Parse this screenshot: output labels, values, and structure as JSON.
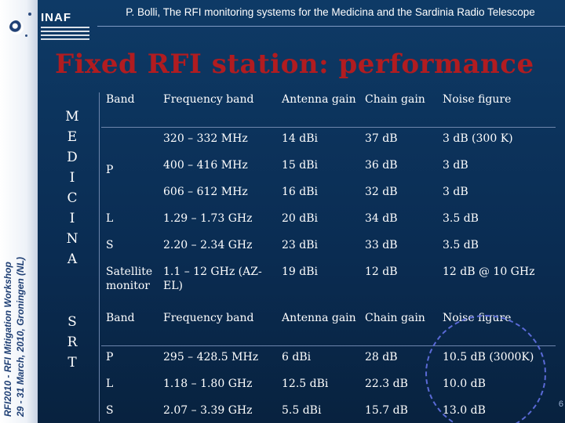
{
  "header": {
    "logo_text": "INAF",
    "title": "P. Bolli, The RFI monitoring systems for the Medicina and the Sardinia Radio Telescope"
  },
  "sidebar": {
    "line1": "RFI2010 - RFI Mitigation Workshop",
    "line2": "29 - 31 March, 2010, Groningen (NL)"
  },
  "slide_title": "Fixed RFI station: performance",
  "stations": {
    "medicina": [
      "M",
      "E",
      "D",
      "I",
      "C",
      "I",
      "N",
      "A"
    ],
    "srt": [
      "S",
      "R",
      "T"
    ]
  },
  "columns": [
    "Band",
    "Frequency band",
    "Antenna gain",
    "Chain gain",
    "Noise figure"
  ],
  "medicina_rows": [
    {
      "band": "",
      "freq": "320 – 332 MHz",
      "antenna": "14 dBi",
      "chain": "37 dB",
      "noise": "3 dB (300 K)"
    },
    {
      "band": "P",
      "freq": "400 – 416 MHz",
      "antenna": "15 dBi",
      "chain": "36 dB",
      "noise": "3 dB"
    },
    {
      "band": "",
      "freq": "606 – 612 MHz",
      "antenna": "16 dBi",
      "chain": "32 dB",
      "noise": "3 dB"
    },
    {
      "band": "L",
      "freq": "1.29 – 1.73 GHz",
      "antenna": "20 dBi",
      "chain": "34 dB",
      "noise": "3.5 dB"
    },
    {
      "band": "S",
      "freq": "2.20 – 2.34 GHz",
      "antenna": "23 dBi",
      "chain": "33 dB",
      "noise": "3.5 dB"
    },
    {
      "band": "Satellite monitor",
      "freq": "1.1 – 12 GHz (AZ-EL)",
      "antenna": "19 dBi",
      "chain": "12 dB",
      "noise": "12 dB @ 10 GHz"
    }
  ],
  "srt_rows": [
    {
      "band": "P",
      "freq": "295 – 428.5 MHz",
      "antenna": "6 dBi",
      "chain": "28 dB",
      "noise": "10.5 dB (3000K)"
    },
    {
      "band": "L",
      "freq": "1.18 – 1.80 GHz",
      "antenna": "12.5 dBi",
      "chain": "22.3 dB",
      "noise": "10.0 dB"
    },
    {
      "band": "S",
      "freq": "2.07 – 3.39 GHz",
      "antenna": "5.5 dBi",
      "chain": "15.7 dB",
      "noise": "13.0 dB"
    }
  ],
  "page_number": "6"
}
